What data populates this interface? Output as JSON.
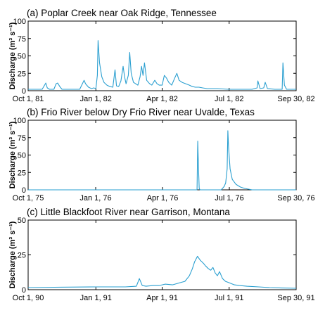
{
  "colors": {
    "series": "#2a9fd0",
    "axis": "#000000",
    "background": "#ffffff"
  },
  "chart_data": [
    {
      "type": "line",
      "title": "(a) Poplar Creek near Oak Ridge, Tennessee",
      "xlabel": "",
      "ylabel": "Discharge (m³ s⁻¹)",
      "xlim": [
        "1981-10-01",
        "1982-09-30"
      ],
      "ylim": [
        0,
        100
      ],
      "yticks": [
        0,
        25,
        50,
        75,
        100
      ],
      "xticks": [
        {
          "date": "1981-10-01",
          "label": "Oct 1, 81"
        },
        {
          "date": "1982-01-01",
          "label": "Jan 1, 82"
        },
        {
          "date": "1982-04-01",
          "label": "Apr 1, 82"
        },
        {
          "date": "1982-07-01",
          "label": "Jul 1, 82"
        },
        {
          "date": "1982-09-30",
          "label": "Sep 30, 82"
        }
      ],
      "grid": false,
      "series": [
        {
          "x": [
            "1981-10-01",
            "1981-10-20",
            "1981-10-25",
            "1981-10-27",
            "1981-10-30",
            "1981-11-05",
            "1981-11-08",
            "1981-11-10",
            "1981-11-13",
            "1981-11-16",
            "1981-11-30",
            "1981-12-10",
            "1981-12-16",
            "1981-12-18",
            "1981-12-22",
            "1981-12-26",
            "1981-12-29",
            "1982-01-01",
            "1982-01-03",
            "1982-01-04",
            "1982-01-06",
            "1982-01-09",
            "1982-01-12",
            "1982-01-16",
            "1982-01-20",
            "1982-01-24",
            "1982-01-27",
            "1982-01-29",
            "1982-02-01",
            "1982-02-04",
            "1982-02-07",
            "1982-02-09",
            "1982-02-11",
            "1982-02-14",
            "1982-02-16",
            "1982-02-18",
            "1982-02-21",
            "1982-02-24",
            "1982-02-27",
            "1982-03-02",
            "1982-03-04",
            "1982-03-06",
            "1982-03-08",
            "1982-03-11",
            "1982-03-15",
            "1982-03-18",
            "1982-03-22",
            "1982-03-25",
            "1982-03-28",
            "1982-04-01",
            "1982-04-04",
            "1982-04-07",
            "1982-04-10",
            "1982-04-14",
            "1982-04-18",
            "1982-04-21",
            "1982-04-24",
            "1982-04-28",
            "1982-05-03",
            "1982-05-08",
            "1982-05-12",
            "1982-05-16",
            "1982-05-21",
            "1982-05-26",
            "1982-06-01",
            "1982-06-15",
            "1982-06-30",
            "1982-07-05",
            "1982-07-15",
            "1982-08-01",
            "1982-08-08",
            "1982-08-09",
            "1982-08-12",
            "1982-08-17",
            "1982-08-19",
            "1982-08-22",
            "1982-09-01",
            "1982-09-11",
            "1982-09-12",
            "1982-09-14",
            "1982-09-17",
            "1982-09-30"
          ],
          "y": [
            2,
            2,
            11,
            4,
            2,
            2,
            10,
            11,
            6,
            2,
            2,
            2,
            15,
            10,
            5,
            3,
            4,
            3,
            22,
            72,
            40,
            20,
            12,
            8,
            6,
            5,
            30,
            7,
            6,
            14,
            35,
            20,
            10,
            22,
            55,
            25,
            12,
            10,
            8,
            20,
            35,
            22,
            40,
            15,
            10,
            8,
            15,
            10,
            8,
            8,
            22,
            18,
            12,
            8,
            18,
            25,
            15,
            12,
            10,
            8,
            6,
            5,
            5,
            4,
            3,
            3,
            2,
            2,
            2,
            2,
            4,
            14,
            3,
            4,
            12,
            3,
            2,
            2,
            40,
            8,
            2,
            2
          ]
        }
      ]
    },
    {
      "type": "line",
      "title": "(b) Frio River below Dry Frio River near Uvalde, Texas",
      "xlabel": "",
      "ylabel": "Discharge (m³ s⁻¹)",
      "xlim": [
        "1975-10-01",
        "1976-09-30"
      ],
      "ylim": [
        0,
        100
      ],
      "yticks": [
        0,
        25,
        50,
        75,
        100
      ],
      "xticks": [
        {
          "date": "1975-10-01",
          "label": "Oct 1, 75"
        },
        {
          "date": "1976-01-01",
          "label": "Jan 1, 76"
        },
        {
          "date": "1976-04-01",
          "label": "Apr 1, 76"
        },
        {
          "date": "1976-07-01",
          "label": "Jul 1, 76"
        },
        {
          "date": "1976-09-30",
          "label": "Sep 30, 76"
        }
      ],
      "grid": false,
      "series": [
        {
          "x": [
            "1975-10-01",
            "1976-05-18",
            "1976-05-19",
            "1976-05-20",
            "1976-05-21",
            "1976-05-22",
            "1976-06-20",
            "1976-06-24",
            "1976-06-26",
            "1976-06-28",
            "1976-06-29",
            "1976-06-30",
            "1976-07-02",
            "1976-07-05",
            "1976-07-10",
            "1976-07-16",
            "1976-07-22",
            "1976-08-01",
            "1976-09-30"
          ],
          "y": [
            0,
            0,
            70,
            30,
            2,
            0,
            0,
            5,
            10,
            30,
            85,
            60,
            30,
            15,
            8,
            4,
            2,
            0,
            0
          ]
        }
      ]
    },
    {
      "type": "line",
      "title": "(c) Little Blackfoot River near Garrison, Montana",
      "xlabel": "",
      "ylabel": "Discharge (m³ s⁻¹)",
      "xlim": [
        "1990-10-01",
        "1991-09-30"
      ],
      "ylim": [
        0,
        50
      ],
      "yticks": [
        0,
        25,
        50
      ],
      "xticks": [
        {
          "date": "1990-10-01",
          "label": "Oct 1, 90"
        },
        {
          "date": "1991-01-01",
          "label": "Jan 1, 91"
        },
        {
          "date": "1991-04-01",
          "label": "Apr 1, 91"
        },
        {
          "date": "1991-07-01",
          "label": "Jul 1, 91"
        },
        {
          "date": "1991-09-30",
          "label": "Sep 30, 91"
        }
      ],
      "grid": false,
      "series": [
        {
          "x": [
            "1990-10-01",
            "1990-11-15",
            "1991-01-01",
            "1991-02-10",
            "1991-02-25",
            "1991-03-01",
            "1991-03-05",
            "1991-03-10",
            "1991-03-20",
            "1991-03-28",
            "1991-04-05",
            "1991-04-15",
            "1991-04-25",
            "1991-05-02",
            "1991-05-08",
            "1991-05-12",
            "1991-05-15",
            "1991-05-19",
            "1991-05-23",
            "1991-05-27",
            "1991-05-30",
            "1991-06-03",
            "1991-06-06",
            "1991-06-09",
            "1991-06-12",
            "1991-06-15",
            "1991-06-18",
            "1991-06-22",
            "1991-06-26",
            "1991-07-01",
            "1991-07-08",
            "1991-07-15",
            "1991-07-25",
            "1991-08-10",
            "1991-08-25",
            "1991-09-10",
            "1991-09-30"
          ],
          "y": [
            1.5,
            1.8,
            2,
            2,
            2.5,
            8,
            3,
            2.5,
            3,
            3,
            4,
            3.5,
            5,
            6,
            10,
            15,
            20,
            24,
            21,
            19,
            17,
            15,
            14,
            16,
            12,
            10,
            13,
            8,
            6,
            5,
            3.5,
            3,
            2.5,
            2,
            1.5,
            1.2,
            1
          ]
        }
      ]
    }
  ]
}
